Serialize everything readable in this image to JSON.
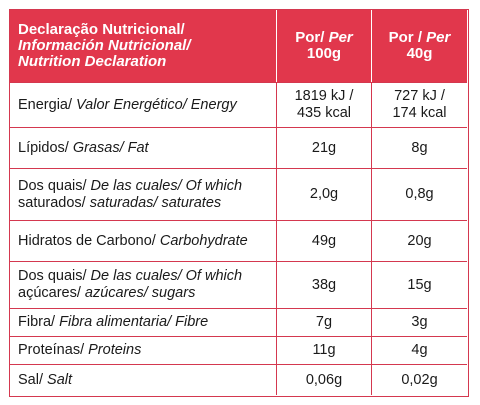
{
  "colors": {
    "accent": "#e1374c",
    "border": "#d4384f",
    "header_text": "#ffffff"
  },
  "header": {
    "title_line1": "Declaração Nutricional/",
    "title_line2": "Información Nutricional/",
    "title_line3": "Nutrition Declaration",
    "col2_por": "Por/",
    "col2_per": "Per",
    "col2_amount": "100g",
    "col3_por": "Por /",
    "col3_per": "Per",
    "col3_amount": "40g"
  },
  "rows": [
    {
      "pt": "Energia/",
      "es": "Valor Energético/ Energy",
      "v100_l1": "1819 kJ /",
      "v100_l2": "435 kcal",
      "v40_l1": "727 kJ /",
      "v40_l2": "174 kcal"
    },
    {
      "pt": "Lípidos/",
      "es": "Grasas/ Fat",
      "v100": "21g",
      "v40": "8g"
    },
    {
      "pt": "Dos quais/",
      "es": "De las cuales/ Of which",
      "pt2": "saturados/",
      "es2": "saturadas/ saturates",
      "v100": "2,0g",
      "v40": "0,8g"
    },
    {
      "pt": "Hidratos de Carbono/",
      "es": "Carbohydrate",
      "v100": "49g",
      "v40": "20g"
    },
    {
      "pt": "Dos quais/",
      "es": "De las cuales/ Of which",
      "pt2": "açúcares/",
      "es2": "azúcares/ sugars",
      "v100": "38g",
      "v40": "15g"
    },
    {
      "pt": "Fibra/",
      "es": "Fibra alimentaria/ Fibre",
      "v100": "7g",
      "v40": "3g"
    },
    {
      "pt": "Proteínas/",
      "es": "Proteins",
      "v100": "11g",
      "v40": "4g"
    },
    {
      "pt": "Sal/",
      "es": "Salt",
      "v100": "0,06g",
      "v40": "0,02g"
    }
  ]
}
